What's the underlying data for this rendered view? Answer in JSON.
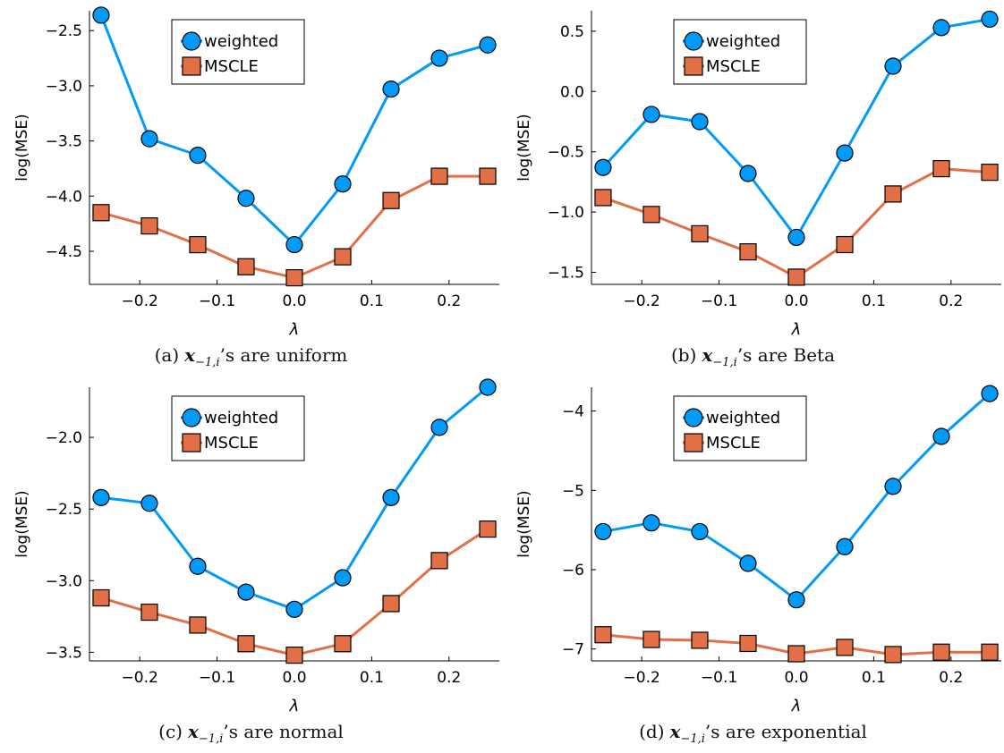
{
  "figure": {
    "variable_symbol": "x",
    "variable_subscript": "−1,i",
    "caption_suffix_prefix": "’s are"
  },
  "chart_data": [
    {
      "type": "line",
      "panel_label": "(a)",
      "caption_word": "uniform",
      "xlabel": "λ",
      "ylabel": "log(MSE)",
      "x": [
        -0.25,
        -0.1875,
        -0.125,
        -0.0625,
        0.0,
        0.0625,
        0.125,
        0.1875,
        0.25
      ],
      "xlim": [
        -0.265,
        0.265
      ],
      "ylim": [
        -4.8,
        -2.32
      ],
      "xticks": [
        -0.2,
        -0.1,
        0.0,
        0.1,
        0.2
      ],
      "xtick_labels": [
        "−0.2",
        "−0.1",
        "0.0",
        "0.1",
        "0.2"
      ],
      "yticks": [
        -2.5,
        -3.0,
        -3.5,
        -4.0,
        -4.5
      ],
      "ytick_labels": [
        "−2.5",
        "−3.0",
        "−3.5",
        "−4.0",
        "−4.5"
      ],
      "legend_placement": "top-center",
      "series": [
        {
          "name": "weighted",
          "color": "#009af9",
          "marker": "circle",
          "values": [
            -2.36,
            -3.48,
            -3.63,
            -4.02,
            -4.44,
            -3.89,
            -3.03,
            -2.75,
            -2.63
          ]
        },
        {
          "name": "MSCLE",
          "color": "#e26f46",
          "marker": "square",
          "values": [
            -4.15,
            -4.27,
            -4.44,
            -4.64,
            -4.74,
            -4.55,
            -4.04,
            -3.82,
            -3.82
          ]
        }
      ]
    },
    {
      "type": "line",
      "panel_label": "(b)",
      "caption_word": "Beta",
      "xlabel": "λ",
      "ylabel": "log(MSE)",
      "x": [
        -0.25,
        -0.1875,
        -0.125,
        -0.0625,
        0.0,
        0.0625,
        0.125,
        0.1875,
        0.25
      ],
      "xlim": [
        -0.265,
        0.265
      ],
      "ylim": [
        -1.6,
        0.67
      ],
      "xticks": [
        -0.2,
        -0.1,
        0.0,
        0.1,
        0.2
      ],
      "xtick_labels": [
        "−0.2",
        "−0.1",
        "0.0",
        "0.1",
        "0.2"
      ],
      "yticks": [
        0.5,
        0.0,
        -0.5,
        -1.0,
        -1.5
      ],
      "ytick_labels": [
        "0.5",
        "0.0",
        "−0.5",
        "−1.0",
        "−1.5"
      ],
      "legend_placement": "top-center",
      "series": [
        {
          "name": "weighted",
          "color": "#009af9",
          "marker": "circle",
          "values": [
            -0.63,
            -0.19,
            -0.25,
            -0.68,
            -1.21,
            -0.51,
            0.21,
            0.53,
            0.6
          ]
        },
        {
          "name": "MSCLE",
          "color": "#e26f46",
          "marker": "square",
          "values": [
            -0.88,
            -1.02,
            -1.18,
            -1.33,
            -1.54,
            -1.27,
            -0.85,
            -0.64,
            -0.67
          ]
        }
      ]
    },
    {
      "type": "line",
      "panel_label": "(c)",
      "caption_word": "normal",
      "xlabel": "λ",
      "ylabel": "log(MSE)",
      "x": [
        -0.25,
        -0.1875,
        -0.125,
        -0.0625,
        0.0,
        0.0625,
        0.125,
        0.1875,
        0.25
      ],
      "xlim": [
        -0.265,
        0.265
      ],
      "ylim": [
        -3.56,
        -1.65
      ],
      "xticks": [
        -0.2,
        -0.1,
        0.0,
        0.1,
        0.2
      ],
      "xtick_labels": [
        "−0.2",
        "−0.1",
        "0.0",
        "0.1",
        "0.2"
      ],
      "yticks": [
        -2.0,
        -2.5,
        -3.0,
        -3.5
      ],
      "ytick_labels": [
        "−2.0",
        "−2.5",
        "−3.0",
        "−3.5"
      ],
      "legend_placement": "top-center",
      "series": [
        {
          "name": "weighted",
          "color": "#009af9",
          "marker": "circle",
          "values": [
            -2.42,
            -2.46,
            -2.9,
            -3.08,
            -3.2,
            -2.98,
            -2.42,
            -1.93,
            -1.65
          ]
        },
        {
          "name": "MSCLE",
          "color": "#e26f46",
          "marker": "square",
          "values": [
            -3.12,
            -3.22,
            -3.31,
            -3.44,
            -3.52,
            -3.44,
            -3.16,
            -2.86,
            -2.64
          ]
        }
      ]
    },
    {
      "type": "line",
      "panel_label": "(d)",
      "caption_word": "exponential",
      "xlabel": "λ",
      "ylabel": "log(MSE)",
      "x": [
        -0.25,
        -0.1875,
        -0.125,
        -0.0625,
        0.0,
        0.0625,
        0.125,
        0.1875,
        0.25
      ],
      "xlim": [
        -0.265,
        0.265
      ],
      "ylim": [
        -7.15,
        -3.7
      ],
      "xticks": [
        -0.2,
        -0.1,
        0.0,
        0.1,
        0.2
      ],
      "xtick_labels": [
        "−0.2",
        "−0.1",
        "0.0",
        "0.1",
        "0.2"
      ],
      "yticks": [
        -4,
        -5,
        -6,
        -7
      ],
      "ytick_labels": [
        "−4",
        "−5",
        "−6",
        "−7"
      ],
      "legend_placement": "top-center",
      "series": [
        {
          "name": "weighted",
          "color": "#009af9",
          "marker": "circle",
          "values": [
            -5.52,
            -5.41,
            -5.52,
            -5.92,
            -6.38,
            -5.71,
            -4.95,
            -4.32,
            -3.78
          ]
        },
        {
          "name": "MSCLE",
          "color": "#e26f46",
          "marker": "square",
          "values": [
            -6.82,
            -6.88,
            -6.89,
            -6.93,
            -7.06,
            -6.98,
            -7.07,
            -7.04,
            -7.04
          ]
        }
      ]
    }
  ]
}
